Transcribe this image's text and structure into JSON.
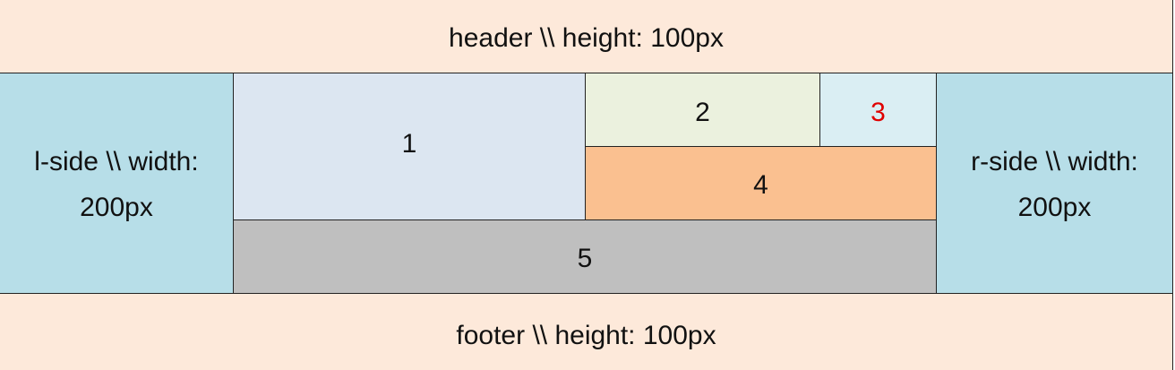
{
  "header": {
    "label": "header \\\\ height: 100px"
  },
  "footer": {
    "label": "footer \\\\ height: 100px"
  },
  "l_side": {
    "line1": "l-side \\\\ width:",
    "line2": "200px"
  },
  "r_side": {
    "line1": "r-side \\\\ width:",
    "line2": "200px"
  },
  "blocks": [
    {
      "label": "1",
      "color": "#dce6f1"
    },
    {
      "label": "2",
      "color": "#ebf1de"
    },
    {
      "label": "3",
      "color": "#daeef3",
      "text_color": "#e00000"
    },
    {
      "label": "4",
      "color": "#fac090"
    },
    {
      "label": "5",
      "color": "#bfbfbf"
    }
  ],
  "colors": {
    "header_footer": "#fde9da",
    "sides": "#b7dee8",
    "border": "#222222"
  }
}
